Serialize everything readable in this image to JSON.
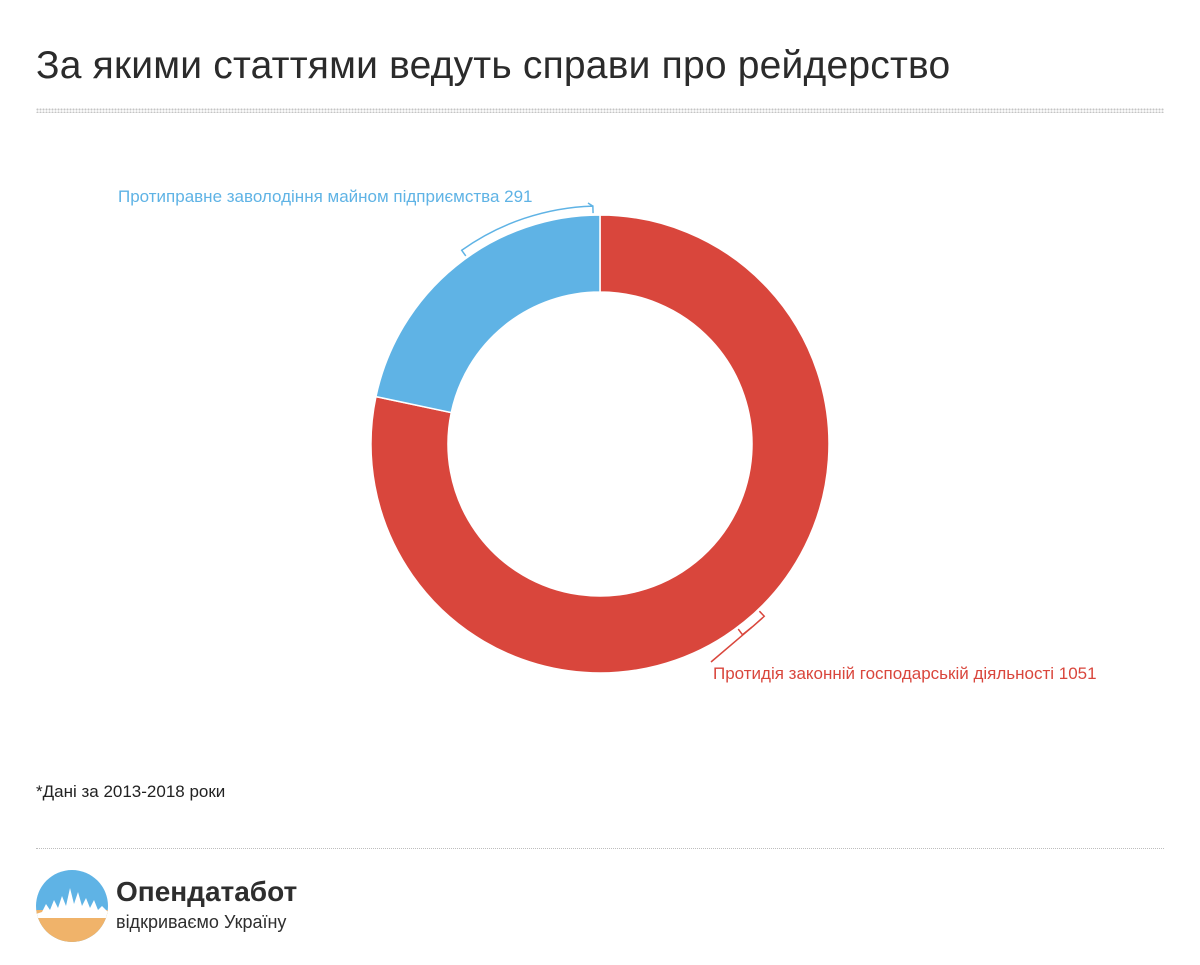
{
  "title": "За якими статтями ведуть справи про рейдерство",
  "chart_data": {
    "type": "pie",
    "donut": true,
    "title": "За якими статтями ведуть справи про рейдерство",
    "start": "top",
    "direction": "clockwise",
    "slices": [
      {
        "label": "Протидія законній господарській діяльності",
        "value": 1051,
        "color": "#d9463c"
      },
      {
        "label": "Протиправне заволодіння майном підприємства",
        "value": 291,
        "color": "#5fb3e5"
      }
    ],
    "labels": [
      "Протидія законній господарській діяльності 1051",
      "Протиправне заволодіння майном підприємства 291"
    ]
  },
  "footnote": "*Дані за 2013-2018 роки",
  "brand": {
    "name": "Опендатабот",
    "tagline": "відкриваємо Україну",
    "logo_colors": {
      "sky": "#5fb3e5",
      "ground": "#f0b36a",
      "skyline": "#ffffff"
    }
  }
}
